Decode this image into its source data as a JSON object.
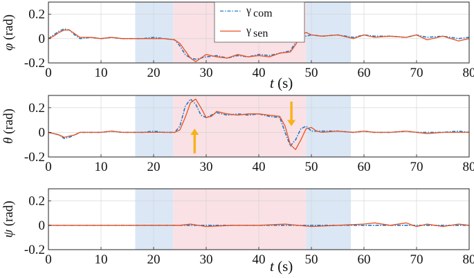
{
  "colors": {
    "com": "#1f77c8",
    "sen": "#e8501e",
    "blue_band": "#dbe7f5",
    "red_band": "#f9e1e5",
    "arrow": "#f7b21b"
  },
  "legend": {
    "com_symbol": "γ",
    "com_sub": "com",
    "sen_symbol": "γ",
    "sen_sub": "sen",
    "placement": "top-center (upper panel)"
  },
  "chart_data": [
    {
      "type": "line",
      "ylabel_symbol": "φ",
      "ylabel_unit": "(rad)",
      "xlabel_symbol": "t",
      "xlabel_unit": "(s)",
      "xlim": [
        0,
        80
      ],
      "ylim": [
        -0.2,
        0.3
      ],
      "xticks": [
        0,
        10,
        20,
        30,
        40,
        50,
        60,
        70,
        80
      ],
      "yticks": [
        -0.2,
        0,
        0.2
      ],
      "grid": true,
      "bands": [
        {
          "from": 16.5,
          "to": 23.7,
          "color": "blue"
        },
        {
          "from": 23.7,
          "to": 49.0,
          "color": "red"
        },
        {
          "from": 49.0,
          "to": 57.5,
          "color": "blue"
        }
      ],
      "series": [
        {
          "name": "γcom",
          "style": "dash-dot",
          "x": [
            0,
            1,
            2,
            3,
            4,
            5,
            6,
            8,
            10,
            12,
            14,
            16,
            18,
            20,
            22,
            24,
            25,
            26,
            27,
            28,
            30,
            32,
            34,
            36,
            38,
            40,
            42,
            44,
            46,
            47,
            48,
            50,
            52,
            55,
            58,
            60,
            62,
            65,
            68,
            70,
            72,
            75,
            78,
            80
          ],
          "values": [
            0.0,
            0.03,
            0.06,
            0.08,
            0.07,
            0.03,
            0.0,
            0.01,
            0.0,
            0.01,
            0.0,
            0.0,
            0.0,
            0.01,
            0.0,
            -0.01,
            -0.06,
            -0.13,
            -0.16,
            -0.17,
            -0.15,
            -0.14,
            -0.16,
            -0.14,
            -0.15,
            -0.13,
            -0.14,
            -0.12,
            -0.1,
            -0.03,
            0.01,
            0.03,
            0.02,
            0.03,
            0.01,
            0.03,
            0.02,
            0.02,
            0.01,
            0.03,
            0.01,
            0.02,
            0.0,
            0.01
          ]
        },
        {
          "name": "γsen",
          "style": "solid",
          "x": [
            0,
            1,
            2,
            3,
            4,
            5,
            6,
            8,
            10,
            12,
            14,
            16,
            18,
            20,
            22,
            24,
            25,
            26,
            27,
            28,
            29,
            30,
            32,
            34,
            36,
            38,
            40,
            42,
            44,
            46,
            47,
            48,
            49,
            50,
            52,
            55,
            58,
            60,
            62,
            65,
            68,
            70,
            72,
            75,
            78,
            80
          ],
          "values": [
            0.0,
            0.02,
            0.05,
            0.07,
            0.07,
            0.04,
            0.01,
            0.01,
            0.0,
            0.01,
            0.0,
            0.0,
            0.0,
            0.0,
            0.0,
            -0.01,
            -0.04,
            -0.1,
            -0.16,
            -0.19,
            -0.16,
            -0.13,
            -0.15,
            -0.16,
            -0.13,
            -0.15,
            -0.14,
            -0.15,
            -0.12,
            -0.11,
            -0.05,
            0.03,
            0.05,
            0.03,
            0.02,
            0.03,
            0.0,
            0.03,
            0.01,
            0.02,
            0.01,
            0.03,
            -0.01,
            0.02,
            -0.02,
            0.0
          ]
        }
      ]
    },
    {
      "type": "line",
      "ylabel_symbol": "θ",
      "ylabel_unit": "(rad)",
      "xlabel_symbol": "",
      "xlabel_unit": "",
      "xlim": [
        0,
        80
      ],
      "ylim": [
        -0.2,
        0.3
      ],
      "xticks": [
        0,
        10,
        20,
        30,
        40,
        50,
        60,
        70,
        80
      ],
      "yticks": [
        -0.2,
        0,
        0.2
      ],
      "grid": true,
      "bands": [
        {
          "from": 16.5,
          "to": 23.7,
          "color": "blue"
        },
        {
          "from": 23.7,
          "to": 49.0,
          "color": "red"
        },
        {
          "from": 49.0,
          "to": 57.5,
          "color": "blue"
        }
      ],
      "arrows": [
        {
          "x": 27.8,
          "y_from": 0.03,
          "y_to": -0.17,
          "direction": "up"
        },
        {
          "x": 46.2,
          "y_from": 0.25,
          "y_to": 0.05,
          "direction": "down"
        }
      ],
      "series": [
        {
          "name": "γcom",
          "style": "dash-dot",
          "x": [
            0,
            1,
            2,
            3,
            4,
            5,
            6,
            8,
            10,
            12,
            14,
            16,
            18,
            20,
            22,
            24,
            25,
            26,
            27,
            28,
            29,
            30,
            32,
            34,
            36,
            38,
            40,
            42,
            44,
            45,
            46,
            47,
            48,
            49,
            50,
            52,
            55,
            58,
            60,
            62,
            65,
            68,
            70,
            72,
            75,
            78,
            80
          ],
          "values": [
            0.0,
            -0.01,
            -0.02,
            -0.05,
            -0.04,
            -0.02,
            0.0,
            0.0,
            0.0,
            0.01,
            0.0,
            0.0,
            0.0,
            0.01,
            0.0,
            0.0,
            0.05,
            0.21,
            0.27,
            0.23,
            0.14,
            0.12,
            0.16,
            0.14,
            0.15,
            0.14,
            0.15,
            0.13,
            0.12,
            0.0,
            -0.11,
            -0.06,
            0.03,
            0.05,
            0.01,
            0.01,
            0.01,
            0.0,
            0.01,
            0.0,
            0.0,
            0.01,
            0.0,
            0.0,
            0.0,
            0.01,
            0.0
          ]
        },
        {
          "name": "γsen",
          "style": "solid",
          "x": [
            0,
            1,
            2,
            3,
            4,
            5,
            6,
            8,
            10,
            12,
            14,
            16,
            18,
            20,
            22,
            24,
            25,
            26,
            27,
            28,
            29,
            30,
            31,
            32,
            34,
            36,
            38,
            40,
            42,
            44,
            45,
            46,
            47,
            48,
            49,
            50,
            51,
            52,
            55,
            58,
            60,
            62,
            65,
            68,
            70,
            72,
            75,
            78,
            80
          ],
          "values": [
            0.0,
            -0.01,
            -0.02,
            -0.04,
            -0.03,
            -0.02,
            0.0,
            0.0,
            0.0,
            0.01,
            0.0,
            0.0,
            0.0,
            0.0,
            0.0,
            0.0,
            0.02,
            0.12,
            0.24,
            0.27,
            0.2,
            0.12,
            0.13,
            0.17,
            0.15,
            0.14,
            0.15,
            0.15,
            0.14,
            0.13,
            0.05,
            -0.1,
            -0.14,
            -0.06,
            0.03,
            0.04,
            0.01,
            0.0,
            0.01,
            0.0,
            0.01,
            0.0,
            0.0,
            0.01,
            0.0,
            -0.01,
            0.0,
            0.0,
            0.0
          ]
        }
      ]
    },
    {
      "type": "line",
      "ylabel_symbol": "ψ",
      "ylabel_unit": "(rad)",
      "xlabel_symbol": "t",
      "xlabel_unit": "(s)",
      "xlim": [
        0,
        80
      ],
      "ylim": [
        -0.2,
        0.3
      ],
      "xticks": [
        0,
        10,
        20,
        30,
        40,
        50,
        60,
        70,
        80
      ],
      "yticks": [
        -0.2,
        0,
        0.2
      ],
      "grid": true,
      "bands": [
        {
          "from": 16.5,
          "to": 23.7,
          "color": "blue"
        },
        {
          "from": 23.7,
          "to": 49.0,
          "color": "red"
        },
        {
          "from": 49.0,
          "to": 57.5,
          "color": "blue"
        }
      ],
      "series": [
        {
          "name": "γcom",
          "style": "dash-dot",
          "x": [
            0,
            80
          ],
          "values": [
            0.0,
            0.0
          ]
        },
        {
          "name": "γsen",
          "style": "solid",
          "x": [
            0,
            5,
            10,
            15,
            20,
            25,
            27,
            30,
            35,
            40,
            45,
            50,
            55,
            60,
            62,
            65,
            68,
            70,
            72,
            75,
            78,
            80
          ],
          "values": [
            0.0,
            0.0,
            0.0,
            0.0,
            0.0,
            0.0,
            0.01,
            -0.01,
            0.0,
            0.0,
            0.01,
            -0.01,
            0.0,
            0.01,
            0.02,
            0.0,
            0.02,
            -0.01,
            0.01,
            -0.01,
            0.01,
            0.0
          ]
        }
      ]
    }
  ]
}
